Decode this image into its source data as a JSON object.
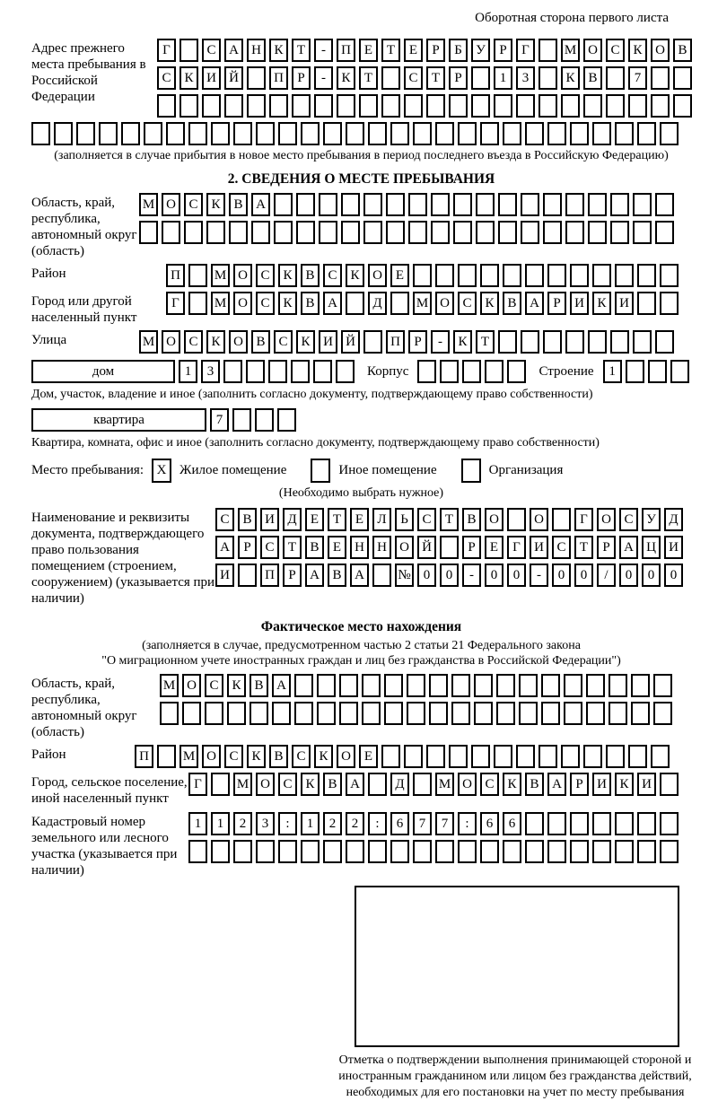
{
  "page": {
    "title": "Оборотная сторона первого листа"
  },
  "prev_address": {
    "label": "Адрес прежнего места пребывания в Российской Федерации",
    "note": "(заполняется в случае прибытия в новое место пребывания в период последнего въезда в Российскую Федерацию)"
  },
  "section2": {
    "title": "2. СВЕДЕНИЯ О МЕСТЕ ПРЕБЫВАНИЯ",
    "oblast_label": "Область, край, республика, автономный округ (область)",
    "raion_label": "Район",
    "city_label": "Город или другой населенный пункт",
    "street_label": "Улица",
    "house_box_label": "дом",
    "korpus_label": "Корпус",
    "stroenie_label": "Строение",
    "house_caption": "Дом, участок, владение и иное (заполнить согласно документу, подтверждающему право собственности)",
    "apartment_box_label": "квартира",
    "apartment_caption": "Квартира, комната, офис и иное (заполнить согласно документу, подтверждающему право собственности)",
    "stay_type": {
      "label": "Место пребывания:",
      "options": [
        {
          "label": "Жилое помещение",
          "mark": "X"
        },
        {
          "label": "Иное помещение",
          "mark": ""
        },
        {
          "label": "Организация",
          "mark": ""
        }
      ],
      "note": "(Необходимо выбрать нужное)"
    },
    "doc_label": "Наименование и реквизиты документа, подтверждающего право пользования помещением (строением, сооружением) (указывается при наличии)"
  },
  "fact_section": {
    "title": "Фактическое место нахождения",
    "note_line1": "(заполняется в случае, предусмотренном частью 2 статьи 21 Федерального закона",
    "note_line2": "\"О миграционном учете иностранных граждан и лиц без гражданства в Российской Федерации\")",
    "oblast_label": "Область, край, республика, автономный округ (область)",
    "raion_label": "Район",
    "city_label": "Город, сельское поселение, иной населенный пункт",
    "kadastr_label": "Кадастровый номер земельного или лесного участка (указывается при наличии)",
    "stamp_caption": "Отметка о подтверждении выполнения принимающей стороной и иностранным гражданином или лицом без гражданства действий, необходимых для его постановки на учет по месту пребывания"
  },
  "grids": {
    "prev_row1": {
      "len": 24,
      "text": "Г САНКТ-ПЕТЕРБУРГ МОСКОВ"
    },
    "prev_row2": {
      "len": 24,
      "text": "СКИЙ ПР-КТ СТР 13 КВ 7"
    },
    "prev_row3": {
      "len": 24,
      "text": ""
    },
    "prev_row4": {
      "len": 29,
      "text": ""
    },
    "oblast1": {
      "len": 24,
      "text": "МОСКВА"
    },
    "oblast2": {
      "len": 24,
      "text": ""
    },
    "raion": {
      "len": 23,
      "text": "П МОСКВСКОЕ"
    },
    "gorod": {
      "len": 23,
      "text": "Г МОСКВА Д МОСКВАРИКИ"
    },
    "ulitsa": {
      "len": 24,
      "text": "МОСКОВСКИЙ ПР-КТ"
    },
    "dom_num": {
      "len": 8,
      "text": "13"
    },
    "korpus": {
      "len": 5,
      "text": ""
    },
    "stroenie": {
      "len": 4,
      "text": "1"
    },
    "kvartira_num": {
      "len": 4,
      "text": "7"
    },
    "doc1": {
      "len": 21,
      "text": "СВИДЕТЕЛЬСТВО О ГОСУД"
    },
    "doc2": {
      "len": 21,
      "text": "АРСТВЕННОЙ РЕГИСТРАЦИ"
    },
    "doc3": {
      "len": 21,
      "text": "И ПРАВА №00-00-00/000"
    },
    "fact_oblast1": {
      "len": 23,
      "text": "МОСКВА"
    },
    "fact_oblast2": {
      "len": 23,
      "text": ""
    },
    "fact_raion": {
      "len": 24,
      "text": "П МОСКВСКОЕ"
    },
    "fact_gorod": {
      "len": 22,
      "text": "Г МОСКВА Д МОСКВАРИКИ"
    },
    "kadastr1": {
      "len": 22,
      "text": "1123:122:677:66"
    },
    "kadastr2": {
      "len": 22,
      "text": ""
    }
  }
}
